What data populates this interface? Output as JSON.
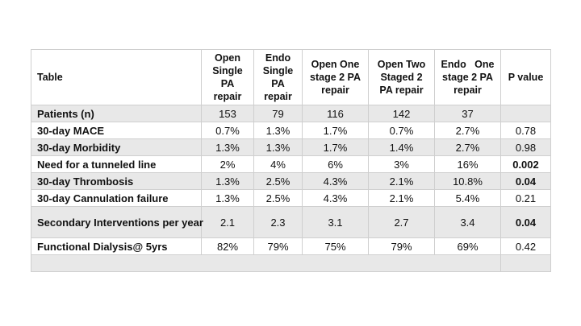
{
  "table": {
    "headers": [
      "Table",
      "Open Single PA repair",
      "Endo Single PA repair",
      "Open One stage 2 PA repair",
      "Open Two Staged 2 PA repair",
      "Endo   One stage 2 PA repair",
      "P value"
    ],
    "rows": [
      {
        "label": "Patients (n)",
        "values": [
          "153",
          "79",
          "116",
          "142",
          "37",
          ""
        ],
        "p_bold": false
      },
      {
        "label": "30-day MACE",
        "values": [
          "0.7%",
          "1.3%",
          "1.7%",
          "0.7%",
          "2.7%",
          "0.78"
        ],
        "p_bold": false
      },
      {
        "label": "30-day Morbidity",
        "values": [
          "1.3%",
          "1.3%",
          "1.7%",
          "1.4%",
          "2.7%",
          "0.98"
        ],
        "p_bold": false
      },
      {
        "label": "Need for a tunneled line",
        "values": [
          "2%",
          "4%",
          "6%",
          "3%",
          "16%",
          "0.002"
        ],
        "p_bold": true
      },
      {
        "label": "30-day Thrombosis",
        "values": [
          "1.3%",
          "2.5%",
          "4.3%",
          "2.1%",
          "10.8%",
          "0.04"
        ],
        "p_bold": true
      },
      {
        "label": "30-day Cannulation failure",
        "values": [
          "1.3%",
          "2.5%",
          "4.3%",
          "2.1%",
          "5.4%",
          "0.21"
        ],
        "p_bold": false
      },
      {
        "label": "Secondary Interventions per year",
        "values": [
          "2.1",
          "2.3",
          "3.1",
          "2.7",
          "3.4",
          "0.04"
        ],
        "p_bold": true
      },
      {
        "label": "Functional Dialysis@ 5yrs",
        "values": [
          "82%",
          "79%",
          "75%",
          "79%",
          "69%",
          "0.42"
        ],
        "p_bold": false
      }
    ]
  }
}
